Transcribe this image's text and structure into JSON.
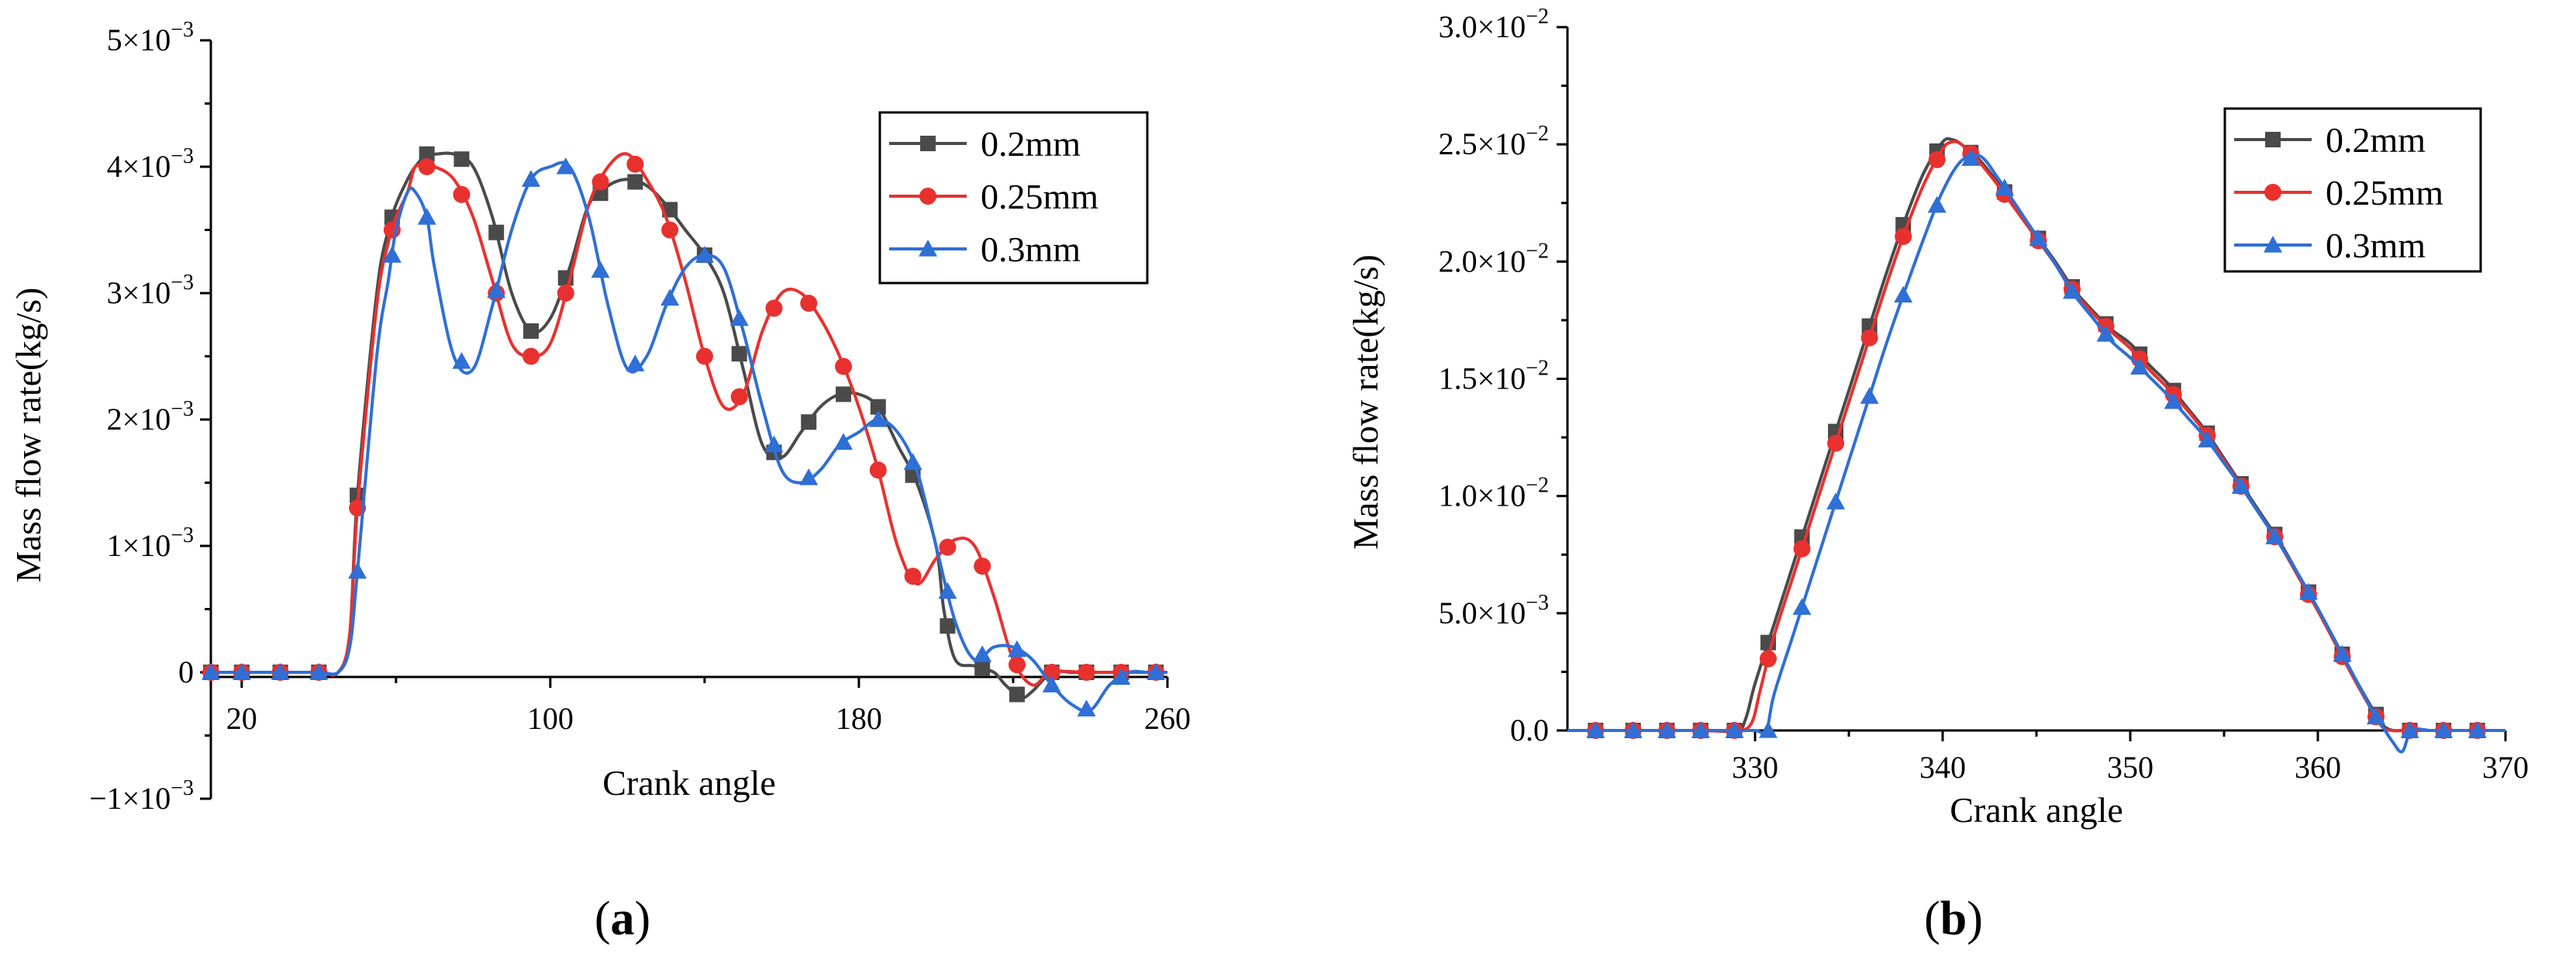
{
  "chart_data": [
    {
      "id": "a",
      "type": "line",
      "panel_label": "a",
      "xlabel": "Crank angle",
      "ylabel": "Mass flow rate(kg/s)",
      "xlim": [
        12,
        260
      ],
      "ylim": [
        -0.001,
        0.005
      ],
      "xticks": [
        20,
        100,
        180,
        260
      ],
      "xtick_labels": [
        "20",
        "100",
        "180",
        "260"
      ],
      "yticks": [
        -0.001,
        0,
        0.001,
        0.002,
        0.003,
        0.004,
        0.005
      ],
      "ytick_labels": [
        {
          "mant": "−1×10",
          "exp": "−3"
        },
        {
          "mant": "0",
          "exp": ""
        },
        {
          "mant": "1×10",
          "exp": "−3"
        },
        {
          "mant": "2×10",
          "exp": "−3"
        },
        {
          "mant": "3×10",
          "exp": "−3"
        },
        {
          "mant": "4×10",
          "exp": "−3"
        },
        {
          "mant": "5×10",
          "exp": "−3"
        }
      ],
      "legend": {
        "placement": "top-right",
        "entries": [
          "0.2mm",
          "0.25mm",
          "0.3mm"
        ]
      },
      "series": [
        {
          "name": "0.2mm",
          "color": "#4a4a4a",
          "marker": "square",
          "x": [
            12,
            20,
            30,
            40,
            45,
            48,
            50,
            55,
            58,
            60,
            63,
            65,
            68,
            70,
            75,
            80,
            85,
            90,
            95,
            100,
            105,
            110,
            115,
            120,
            125,
            130,
            135,
            140,
            145,
            150,
            155,
            160,
            165,
            170,
            175,
            180,
            185,
            190,
            195,
            200,
            202,
            205,
            210,
            215,
            218,
            222,
            225,
            230,
            235,
            240,
            245,
            250,
            255,
            260
          ],
          "y": [
            0,
            0,
            0,
            0,
            0,
            0.0003,
            0.0014,
            0.003,
            0.0035,
            0.0037,
            0.0039,
            0.004,
            0.0041,
            0.0041,
            0.0041,
            0.004,
            0.0036,
            0.003,
            0.0027,
            0.0028,
            0.0032,
            0.0037,
            0.00385,
            0.0039,
            0.00385,
            0.0037,
            0.0035,
            0.0033,
            0.003,
            0.0024,
            0.0018,
            0.0017,
            0.0019,
            0.0021,
            0.0022,
            0.0022,
            0.0021,
            0.0018,
            0.0015,
            0.001,
            0.0005,
            0.0001,
            5e-05,
            0,
            -0.0001,
            -0.0002,
            -0.00015,
            0,
            0,
            0,
            0,
            0,
            0,
            0
          ],
          "markers_x": [
            12,
            20,
            30,
            40,
            50,
            59,
            68,
            77,
            86,
            95,
            104,
            113,
            122,
            131,
            140,
            149,
            158,
            167,
            176,
            185,
            194,
            203,
            212,
            221,
            230,
            239,
            248,
            257
          ],
          "marker_y_override": {}
        },
        {
          "name": "0.25mm",
          "color": "#e8312f",
          "marker": "circle",
          "x": [
            12,
            20,
            30,
            40,
            45,
            48,
            50,
            55,
            58,
            60,
            63,
            65,
            68,
            70,
            75,
            80,
            85,
            90,
            95,
            100,
            105,
            110,
            115,
            120,
            125,
            130,
            135,
            140,
            145,
            150,
            155,
            160,
            165,
            170,
            175,
            180,
            185,
            190,
            195,
            200,
            205,
            210,
            215,
            220,
            225,
            230,
            240,
            250,
            260
          ],
          "y": [
            0,
            0,
            0,
            0,
            0,
            0.0003,
            0.0013,
            0.0029,
            0.0034,
            0.0036,
            0.0038,
            0.004,
            0.004,
            0.004,
            0.0039,
            0.0036,
            0.0031,
            0.0026,
            0.0025,
            0.0026,
            0.0031,
            0.0037,
            0.004,
            0.0041,
            0.0039,
            0.0036,
            0.0031,
            0.0025,
            0.0021,
            0.0022,
            0.0027,
            0.003,
            0.003,
            0.0028,
            0.0025,
            0.0021,
            0.0016,
            0.001,
            0.0007,
            0.0009,
            0.00105,
            0.001,
            0.0006,
            0.0001,
            -0.0001,
            0,
            0,
            0,
            0
          ],
          "markers_x": [
            12,
            20,
            30,
            40,
            50,
            59,
            68,
            77,
            86,
            95,
            104,
            113,
            122,
            131,
            140,
            149,
            158,
            167,
            176,
            185,
            194,
            203,
            212,
            221,
            230,
            239,
            248,
            257
          ],
          "marker_y_override": {}
        },
        {
          "name": "0.3mm",
          "color": "#2f6fd6",
          "marker": "triangle",
          "x": [
            12,
            20,
            30,
            40,
            45,
            48,
            50,
            55,
            58,
            60,
            63,
            65,
            68,
            70,
            75,
            80,
            85,
            90,
            95,
            100,
            105,
            110,
            115,
            120,
            125,
            130,
            135,
            140,
            145,
            150,
            155,
            160,
            165,
            170,
            175,
            180,
            185,
            190,
            195,
            200,
            205,
            210,
            215,
            220,
            225,
            230,
            235,
            240,
            245,
            250,
            255,
            260
          ],
          "y": [
            0,
            0,
            0,
            0,
            0,
            0.0002,
            0.0008,
            0.0025,
            0.0031,
            0.0035,
            0.0038,
            0.0038,
            0.0036,
            0.0032,
            0.0025,
            0.0024,
            0.0029,
            0.0035,
            0.0039,
            0.004,
            0.004,
            0.0036,
            0.0029,
            0.0024,
            0.0025,
            0.0029,
            0.0032,
            0.0033,
            0.0032,
            0.0027,
            0.0021,
            0.0016,
            0.0015,
            0.0016,
            0.0018,
            0.0019,
            0.002,
            0.0019,
            0.0016,
            0.001,
            0.0004,
            0.0001,
            0.0002,
            0.0002,
            0.0001,
            -0.0001,
            -0.00025,
            -0.0003,
            -0.0001,
            0,
            0,
            0
          ],
          "markers_x": [
            12,
            20,
            30,
            40,
            50,
            59,
            68,
            77,
            86,
            95,
            104,
            113,
            122,
            131,
            140,
            149,
            158,
            167,
            176,
            185,
            194,
            203,
            212,
            221,
            230,
            239,
            248,
            257
          ],
          "marker_y_override": {}
        }
      ]
    },
    {
      "id": "b",
      "type": "line",
      "panel_label": "b",
      "xlabel": "Crank angle",
      "ylabel": "Mass flow rate(kg/s)",
      "xlim": [
        320,
        370
      ],
      "ylim": [
        0,
        0.03
      ],
      "xticks": [
        330,
        340,
        350,
        360,
        370
      ],
      "xtick_labels": [
        "330",
        "340",
        "350",
        "360",
        "370"
      ],
      "yticks": [
        0,
        0.005,
        0.01,
        0.015,
        0.02,
        0.025,
        0.03
      ],
      "ytick_labels": [
        {
          "mant": "0.0",
          "exp": ""
        },
        {
          "mant": "5.0×10",
          "exp": "−3"
        },
        {
          "mant": "1.0×10",
          "exp": "−2"
        },
        {
          "mant": "1.5×10",
          "exp": "−2"
        },
        {
          "mant": "2.0×10",
          "exp": "−2"
        },
        {
          "mant": "2.5×10",
          "exp": "−2"
        },
        {
          "mant": "3.0×10",
          "exp": "−2"
        }
      ],
      "legend": {
        "placement": "top-right",
        "entries": [
          "0.2mm",
          "0.25mm",
          "0.3mm"
        ]
      },
      "series": [
        {
          "name": "0.2mm",
          "color": "#4a4a4a",
          "marker": "square",
          "x": [
            320,
            321.5,
            323,
            325,
            327,
            329,
            329.5,
            330,
            331,
            332,
            333,
            334,
            335,
            336,
            337,
            338,
            339,
            340,
            340.5,
            341,
            342,
            343,
            344,
            345,
            346,
            347,
            348,
            349,
            350,
            351,
            352,
            353,
            354,
            355,
            356,
            357,
            358,
            359,
            360,
            361,
            362,
            363,
            363.5,
            364,
            364.5,
            365,
            366,
            367,
            368,
            369,
            370
          ],
          "y": [
            0,
            0,
            0,
            0,
            0,
            0,
            0.0005,
            0.002,
            0.0045,
            0.007,
            0.0095,
            0.012,
            0.0145,
            0.017,
            0.0195,
            0.0218,
            0.0238,
            0.0251,
            0.0252,
            0.025,
            0.0243,
            0.0233,
            0.0222,
            0.0211,
            0.02,
            0.0188,
            0.0179,
            0.0171,
            0.0165,
            0.0156,
            0.0148,
            0.0138,
            0.0128,
            0.0116,
            0.0104,
            0.0092,
            0.008,
            0.0066,
            0.0052,
            0.0037,
            0.0022,
            0.0008,
            0.0002,
            0,
            0,
            0,
            0,
            0,
            0,
            0,
            0
          ],
          "markers_x": [
            321.5,
            323.5,
            325.3,
            327.1,
            328.9,
            330.7,
            332.5,
            334.3,
            336.1,
            337.9,
            339.7,
            341.5,
            343.3,
            345.1,
            346.9,
            348.7,
            350.5,
            352.3,
            354.1,
            355.9,
            357.7,
            359.5,
            361.3,
            363.1,
            364.9,
            366.7,
            368.5
          ],
          "marker_y_override": {
            "321.5": 0,
            "323.5": 0,
            "325.3": 0,
            "327.1": 0,
            "328.9": 0,
            "364.9": 0,
            "366.7": 0,
            "368.5": 0
          }
        },
        {
          "name": "0.25mm",
          "color": "#e8312f",
          "marker": "circle",
          "x": [
            320,
            321.5,
            323,
            325,
            327,
            329,
            329.8,
            330.3,
            331,
            332,
            333,
            334,
            335,
            336,
            337,
            338,
            339,
            340,
            340.5,
            341,
            342,
            343,
            344,
            345,
            346,
            347,
            348,
            349,
            350,
            351,
            352,
            353,
            354,
            355,
            356,
            357,
            358,
            359,
            360,
            361,
            362,
            363,
            363.5,
            364,
            364.5,
            365,
            366,
            367,
            368,
            369,
            370
          ],
          "y": [
            0,
            0,
            0,
            0,
            0,
            0,
            0.0003,
            0.0018,
            0.004,
            0.0065,
            0.009,
            0.0115,
            0.014,
            0.0165,
            0.019,
            0.0213,
            0.0233,
            0.0248,
            0.0251,
            0.025,
            0.0242,
            0.0232,
            0.0221,
            0.021,
            0.0199,
            0.0187,
            0.0178,
            0.017,
            0.0163,
            0.0154,
            0.0146,
            0.0137,
            0.0127,
            0.0115,
            0.0103,
            0.0091,
            0.0079,
            0.0065,
            0.0051,
            0.0036,
            0.0021,
            0.0007,
            0.0001,
            0,
            0,
            0,
            0,
            0,
            0,
            0,
            0
          ],
          "markers_x": [
            321.5,
            323.5,
            325.3,
            327.1,
            328.9,
            330.7,
            332.5,
            334.3,
            336.1,
            337.9,
            339.7,
            341.5,
            343.3,
            345.1,
            346.9,
            348.7,
            350.5,
            352.3,
            354.1,
            355.9,
            357.7,
            359.5,
            361.3,
            363.1,
            364.9,
            366.7,
            368.5
          ],
          "marker_y_override": {
            "321.5": 0,
            "323.5": 0,
            "325.3": 0,
            "327.1": 0,
            "328.9": 0,
            "364.9": 0,
            "366.7": 0,
            "368.5": 0
          }
        },
        {
          "name": "0.3mm",
          "color": "#2f6fd6",
          "marker": "triangle",
          "x": [
            320,
            321.5,
            323,
            325,
            327,
            329,
            330,
            330.6,
            331,
            332,
            333,
            334,
            335,
            336,
            337,
            338,
            339,
            340,
            341,
            342,
            343,
            344,
            345,
            346,
            347,
            348,
            349,
            350,
            351,
            352,
            353,
            354,
            355,
            356,
            357,
            358,
            359,
            360,
            361,
            362,
            363,
            363.5,
            364,
            364.5,
            365,
            366,
            367,
            368,
            369,
            370
          ],
          "y": [
            0,
            0,
            0,
            0,
            0,
            0,
            0,
            0,
            0.0015,
            0.004,
            0.0065,
            0.009,
            0.0115,
            0.014,
            0.0165,
            0.0188,
            0.021,
            0.023,
            0.0243,
            0.0245,
            0.0235,
            0.0223,
            0.0211,
            0.0199,
            0.0186,
            0.0176,
            0.0166,
            0.0159,
            0.0151,
            0.0143,
            0.0134,
            0.0125,
            0.0114,
            0.0103,
            0.0091,
            0.0079,
            0.0066,
            0.0052,
            0.0037,
            0.0022,
            0.0007,
            0.0001,
            -0.0005,
            -0.0009,
            0,
            0,
            0,
            0,
            0,
            0
          ],
          "markers_x": [
            321.5,
            323.5,
            325.3,
            327.1,
            328.9,
            330.7,
            332.5,
            334.3,
            336.1,
            337.9,
            339.7,
            341.5,
            343.3,
            345.1,
            346.9,
            348.7,
            350.5,
            352.3,
            354.1,
            355.9,
            357.7,
            359.5,
            361.3,
            363.1,
            364.9,
            366.7,
            368.5
          ],
          "marker_y_override": {
            "321.5": 0,
            "323.5": 0,
            "325.3": 0,
            "327.1": 0,
            "328.9": 0,
            "330.7": 0,
            "364.9": 0,
            "366.7": 0,
            "368.5": 0
          }
        }
      ]
    }
  ]
}
